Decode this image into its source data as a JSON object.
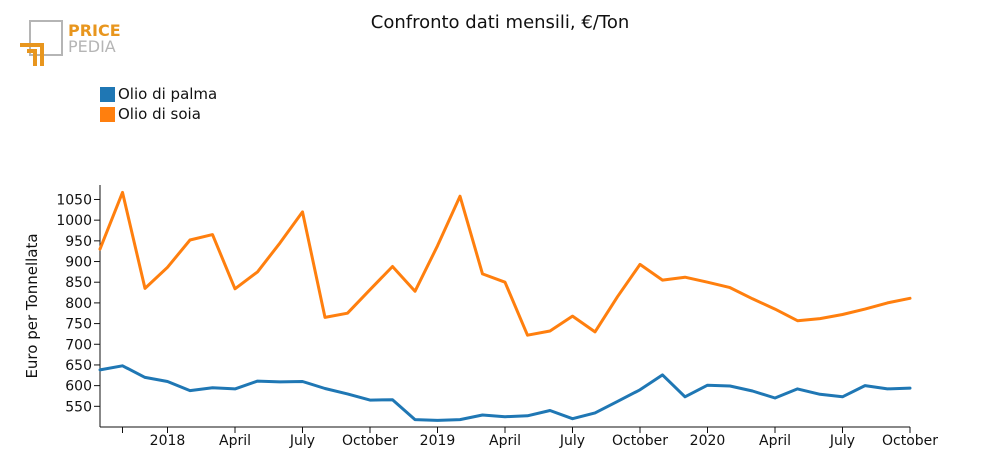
{
  "logo": {
    "line1": "PRICE",
    "line2": "PEDIA",
    "colors": {
      "accent": "#e8961e",
      "gray": "#b5b5b5"
    }
  },
  "chart_data": {
    "type": "line",
    "title": "Confronto dati mensili, €/Ton",
    "xlabel": "",
    "ylabel": "Euro per Tonnellata",
    "ylim": [
      500,
      1085
    ],
    "yticks": [
      550,
      600,
      650,
      700,
      750,
      800,
      850,
      900,
      950,
      1000,
      1050
    ],
    "xticks": [
      {
        "index": 1,
        "label": ""
      },
      {
        "index": 3,
        "label": "2018"
      },
      {
        "index": 6,
        "label": "April"
      },
      {
        "index": 9,
        "label": "July"
      },
      {
        "index": 12,
        "label": "October"
      },
      {
        "index": 15,
        "label": "2019"
      },
      {
        "index": 18,
        "label": "April"
      },
      {
        "index": 21,
        "label": "July"
      },
      {
        "index": 24,
        "label": "October"
      },
      {
        "index": 27,
        "label": "2020"
      },
      {
        "index": 30,
        "label": "April"
      },
      {
        "index": 33,
        "label": "July"
      },
      {
        "index": 36,
        "label": "October"
      }
    ],
    "x": [
      "2017-11",
      "2017-12",
      "2018-01",
      "2018-02",
      "2018-03",
      "2018-04",
      "2018-05",
      "2018-06",
      "2018-07",
      "2018-08",
      "2018-09",
      "2018-10",
      "2018-11",
      "2018-12",
      "2019-01",
      "2019-02",
      "2019-03",
      "2019-04",
      "2019-05",
      "2019-06",
      "2019-07",
      "2019-08",
      "2019-09",
      "2019-10",
      "2019-11",
      "2019-12",
      "2020-01",
      "2020-02",
      "2020-03",
      "2020-04",
      "2020-05",
      "2020-06",
      "2020-07",
      "2020-08",
      "2020-09",
      "2020-10",
      "2020-11"
    ],
    "legend": "top-left",
    "grid": false,
    "series": [
      {
        "name": "Olio di palma",
        "color": "#1f77b4",
        "values": [
          638,
          648,
          620,
          610,
          588,
          595,
          592,
          611,
          609,
          610,
          593,
          580,
          565,
          566,
          518,
          516,
          518,
          529,
          525,
          527,
          540,
          520,
          534,
          562,
          590,
          626,
          573,
          601,
          599,
          587,
          570,
          592,
          579,
          573,
          600,
          592,
          594
        ]
      },
      {
        "name": "Olio di soia",
        "color": "#ff7f0e",
        "values": [
          930,
          1067,
          835,
          886,
          952,
          965,
          834,
          875,
          945,
          1020,
          765,
          775,
          832,
          888,
          828,
          938,
          1058,
          870,
          850,
          722,
          732,
          768,
          730,
          815,
          893,
          855,
          862,
          850,
          837,
          810,
          785,
          757,
          762,
          772,
          785,
          800,
          811
        ]
      }
    ]
  }
}
